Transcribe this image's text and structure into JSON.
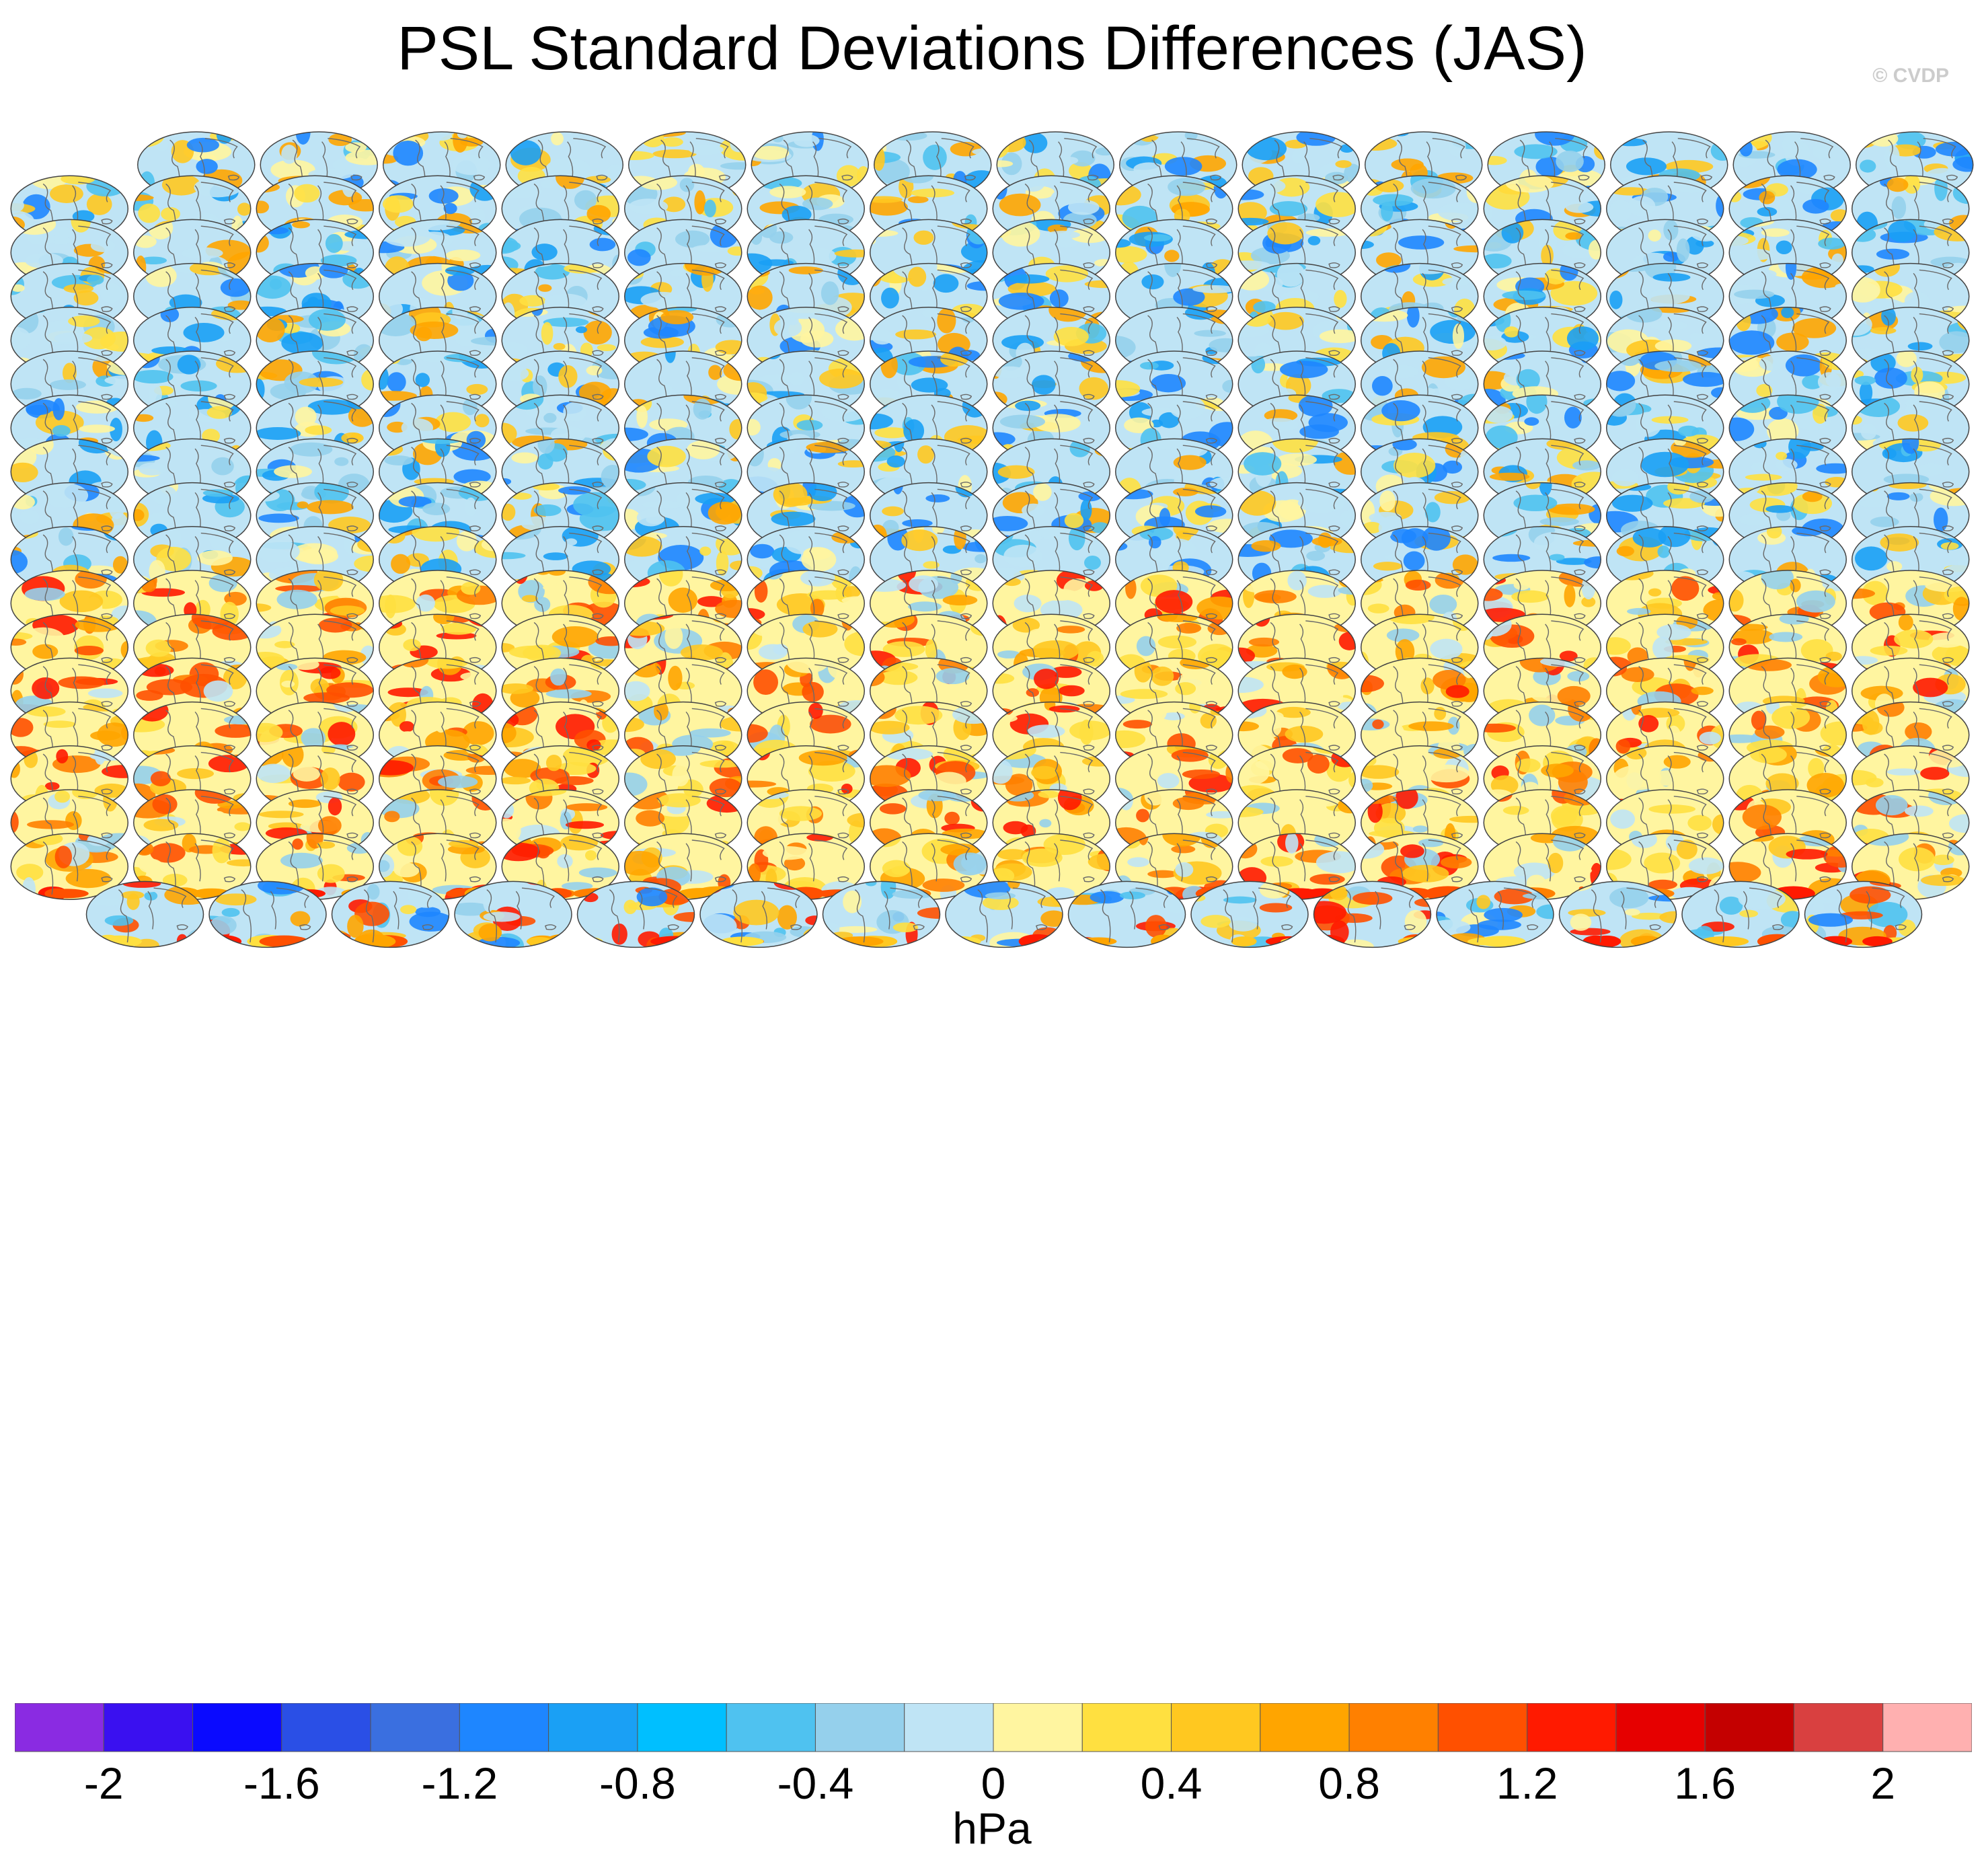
{
  "title": "PSL Standard Deviations Differences (JAS)",
  "credit": "© CVDP",
  "chart_data": {
    "type": "heatmap",
    "title": "PSL Standard Deviations Differences (JAS)",
    "projection": "global map panels",
    "layout": {
      "row_counts": [
        15,
        16,
        16,
        16,
        16,
        16,
        16,
        16,
        16,
        16,
        16,
        16,
        16,
        16,
        16,
        16,
        16,
        15
      ]
    },
    "panel_tones": [
      "blue-dominant",
      "blue-dominant",
      "blue-dominant",
      "blue-dominant",
      "blue-dominant",
      "blue-dominant",
      "blue-dominant",
      "blue-dominant",
      "blue-dominant",
      "blue-dominant",
      "warm-dominant",
      "warm-dominant",
      "warm-dominant",
      "warm-dominant",
      "warm-dominant",
      "warm-dominant",
      "warm-dominant",
      "mixed"
    ],
    "colorbar": {
      "colors": [
        "#8a2be2",
        "#3a10f0",
        "#0a0aff",
        "#2a4fe6",
        "#3a6fe0",
        "#1e86ff",
        "#1aa0f5",
        "#00bfff",
        "#4fc2f0",
        "#95d0ec",
        "#bfe4f5",
        "#fff5a0",
        "#ffe040",
        "#ffc820",
        "#ffa500",
        "#ff8000",
        "#ff5000",
        "#ff1a00",
        "#e60000",
        "#c40000",
        "#d94040",
        "#ffb0b0"
      ],
      "tick_labels": [
        "-2",
        "-1.6",
        "-1.2",
        "-0.8",
        "-0.4",
        "0",
        "0.4",
        "0.8",
        "1.2",
        "1.6",
        "2"
      ],
      "tick_values": [
        -2,
        -1.6,
        -1.2,
        -0.8,
        -0.4,
        0,
        0.4,
        0.8,
        1.2,
        1.6,
        2
      ],
      "range": [
        -2.2,
        2.2
      ],
      "units": "hPa"
    }
  }
}
